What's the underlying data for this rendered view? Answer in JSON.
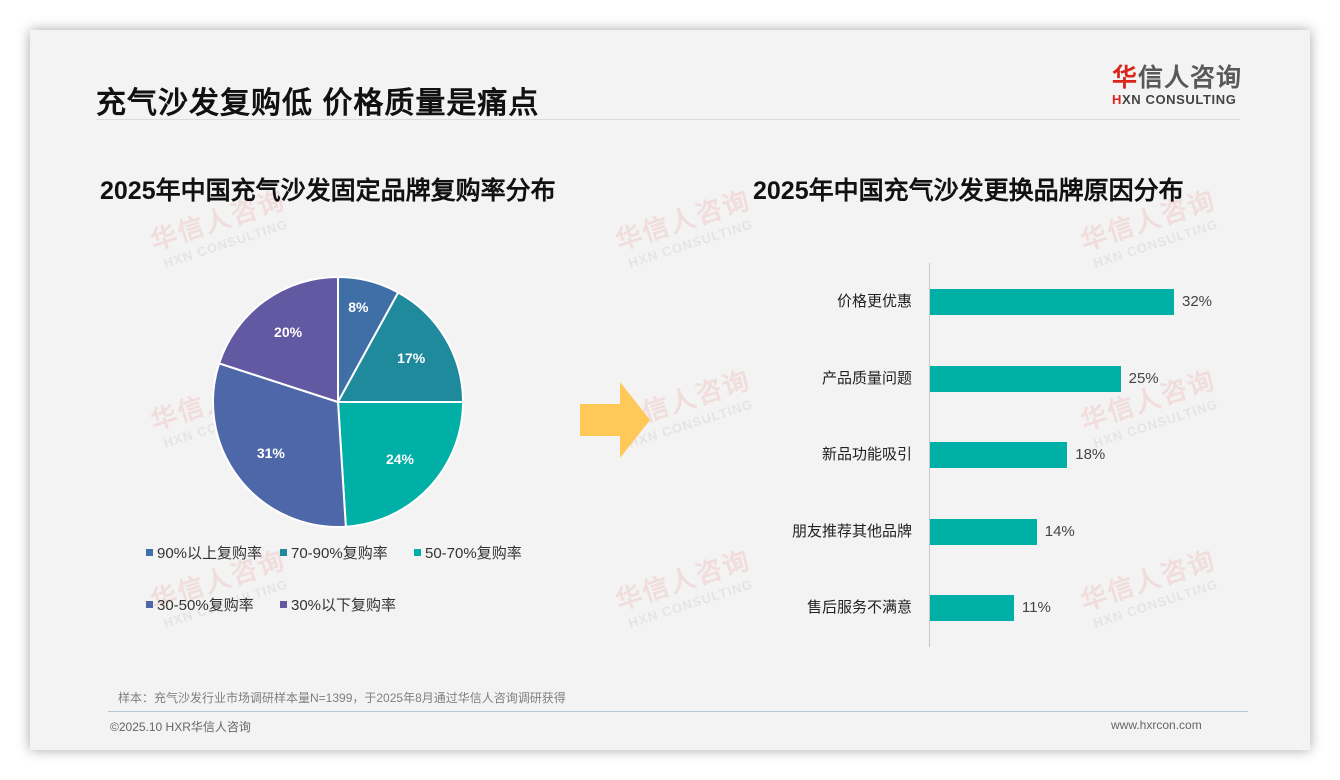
{
  "slide": {
    "title": "充气沙发复购低 价格质量是痛点",
    "logo": {
      "cn_red": "华",
      "cn_rest": "信人咨询",
      "en_red": "H",
      "en_rest": "XN CONSULTING"
    },
    "source_note": "样本：充气沙发行业市场调研样本量N=1399，于2025年8月通过华信人咨询调研获得",
    "footer_left": "©2025.10 HXR华信人咨询",
    "footer_right": "www.hxrcon.com",
    "watermark": {
      "cn": "华信人咨询",
      "en": "HXN CONSULTING"
    }
  },
  "chart_data": [
    {
      "type": "pie",
      "title": "2025年中国充气沙发固定品牌复购率分布",
      "categories": [
        "90%以上复购率",
        "70-90%复购率",
        "50-70%复购率",
        "30-50%复购率",
        "30%以下复购率"
      ],
      "values": [
        8,
        17,
        24,
        31,
        20
      ],
      "labels": [
        "8%",
        "17%",
        "24%",
        "31%",
        "20%"
      ],
      "colors": [
        "#3f6fa6",
        "#1e8a9c",
        "#00b0a6",
        "#4e67a8",
        "#6259a2"
      ],
      "legend_position": "bottom"
    },
    {
      "type": "bar",
      "orientation": "horizontal",
      "title": "2025年中国充气沙发更换品牌原因分布",
      "categories": [
        "价格更优惠",
        "产品质量问题",
        "新品功能吸引",
        "朋友推荐其他品牌",
        "售后服务不满意"
      ],
      "values": [
        32,
        25,
        18,
        14,
        11
      ],
      "labels": [
        "32%",
        "25%",
        "18%",
        "14%",
        "11%"
      ],
      "color": "#00b0a6",
      "grid": false,
      "xlim": [
        0,
        33
      ]
    }
  ]
}
